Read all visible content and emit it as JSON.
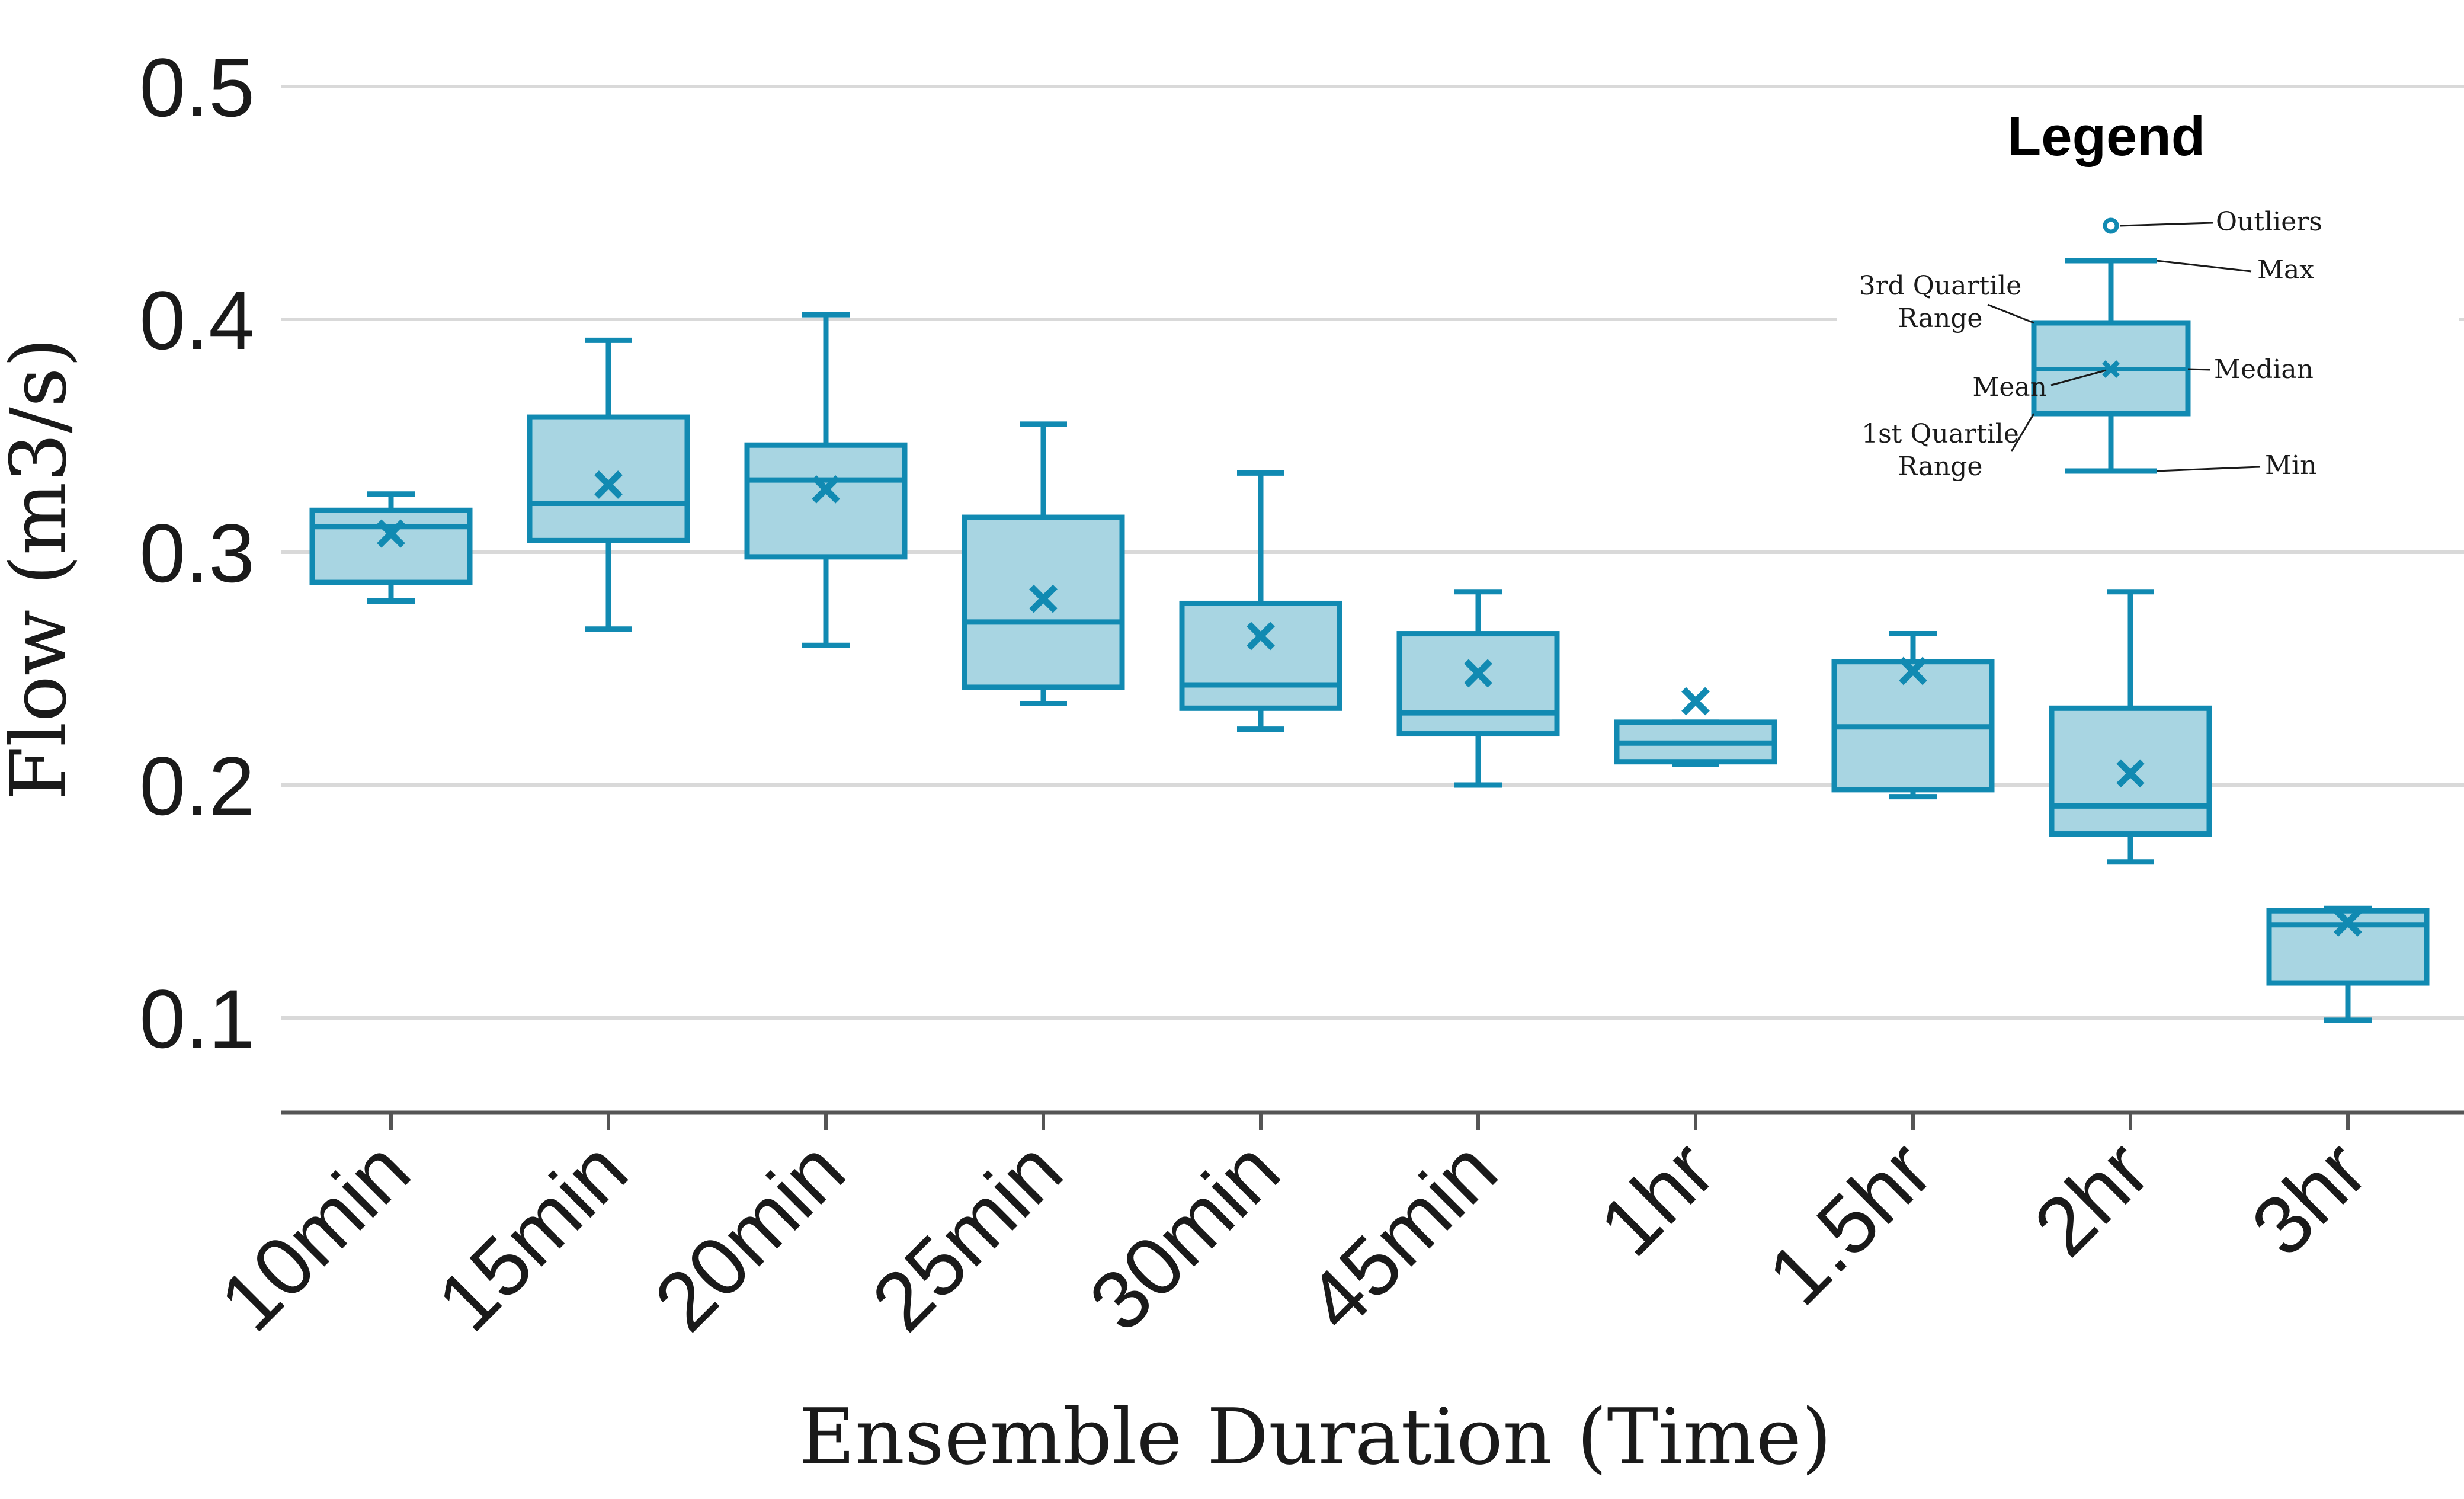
{
  "chart_data": {
    "type": "box",
    "xlabel": "Ensemble Duration (Time)",
    "ylabel": "Flow (m3/s)",
    "ylim": [
      0.06,
      0.5
    ],
    "yticks": [
      "0.1",
      "0.2",
      "0.3",
      "0.4",
      "0.5"
    ],
    "grid": true,
    "legend_position": "top-right",
    "categories": [
      "10min",
      "15min",
      "20min",
      "25min",
      "30min",
      "45min",
      "1hr",
      "1.5hr",
      "2hr",
      "3hr"
    ],
    "boxes": [
      {
        "category": "10min",
        "min": 0.279,
        "q1": 0.287,
        "median": 0.311,
        "q3": 0.318,
        "max": 0.325,
        "mean": 0.308
      },
      {
        "category": "15min",
        "min": 0.267,
        "q1": 0.305,
        "median": 0.321,
        "q3": 0.358,
        "max": 0.391,
        "mean": 0.329
      },
      {
        "category": "20min",
        "min": 0.26,
        "q1": 0.298,
        "median": 0.331,
        "q3": 0.346,
        "max": 0.402,
        "mean": 0.327
      },
      {
        "category": "25min",
        "min": 0.235,
        "q1": 0.242,
        "median": 0.27,
        "q3": 0.315,
        "max": 0.355,
        "mean": 0.28
      },
      {
        "category": "30min",
        "min": 0.224,
        "q1": 0.233,
        "median": 0.243,
        "q3": 0.278,
        "max": 0.334,
        "mean": 0.264
      },
      {
        "category": "45min",
        "min": 0.2,
        "q1": 0.222,
        "median": 0.231,
        "q3": 0.265,
        "max": 0.283,
        "mean": 0.248
      },
      {
        "category": "1hr",
        "min": 0.209,
        "q1": 0.21,
        "median": 0.218,
        "q3": 0.227,
        "max": 0.227,
        "mean": 0.236
      },
      {
        "category": "1.5hr",
        "min": 0.195,
        "q1": 0.198,
        "median": 0.225,
        "q3": 0.253,
        "max": 0.265,
        "mean": 0.249
      },
      {
        "category": "2hr",
        "min": 0.167,
        "q1": 0.179,
        "median": 0.191,
        "q3": 0.233,
        "max": 0.283,
        "mean": 0.205
      },
      {
        "category": "3hr",
        "min": 0.099,
        "q1": 0.115,
        "median": 0.14,
        "q3": 0.146,
        "max": 0.147,
        "mean": 0.141
      }
    ],
    "legend": {
      "title": "Legend",
      "outliers": "Outliers",
      "max": "Max",
      "q3_line1": "3rd Quartile",
      "q3_line2": "Range",
      "median": "Median",
      "mean": "Mean",
      "q1_line1": "1st Quartile",
      "q1_line2": "Range",
      "min": "Min"
    }
  },
  "colors": {
    "box_stroke": "#118ab2",
    "box_fill": "#a8d5e2",
    "grid": "#d9d9d9",
    "axis": "#555555",
    "text": "#1a1a1a"
  }
}
